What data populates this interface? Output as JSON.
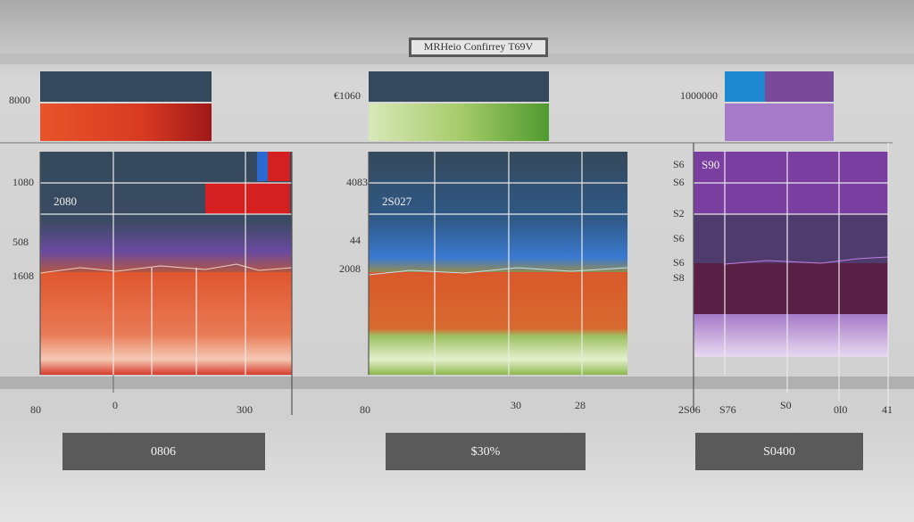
{
  "header": {
    "title": "MRHeio Confirrey T69V"
  },
  "panels": [
    {
      "top_label": "8000",
      "inner_label": "2080",
      "y_labels": [
        "1080",
        "508",
        "1608"
      ],
      "x_labels": [
        "80",
        "0",
        "300"
      ],
      "button": "0806"
    },
    {
      "top_label": "€1060",
      "inner_label": "2S027",
      "y_labels": [
        "4083",
        "44",
        "2008"
      ],
      "x_labels": [
        "80",
        "30",
        "28"
      ],
      "button": "$30%"
    },
    {
      "top_label": "1000000",
      "inner_label": "S90",
      "y_labels": [
        "S6",
        "S6",
        "S2",
        "S6",
        "S6",
        "S8"
      ],
      "x_labels": [
        "2S06",
        "S76",
        "S0",
        "0l0",
        "41"
      ],
      "button": "S0400"
    }
  ]
}
